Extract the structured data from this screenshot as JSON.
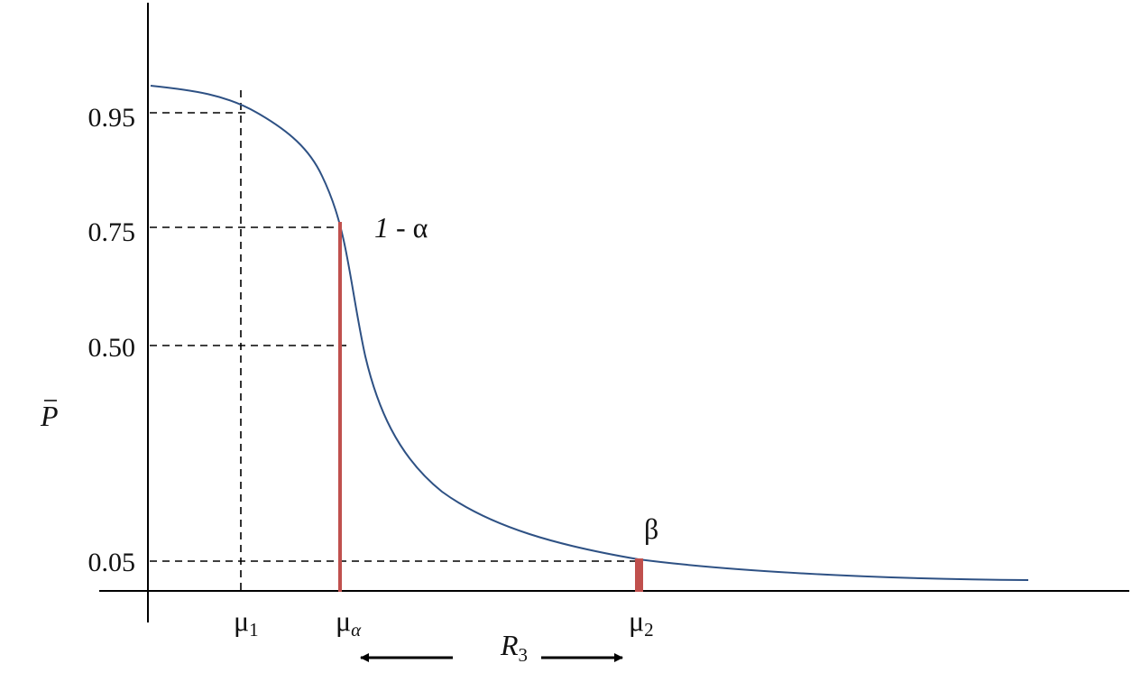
{
  "colors": {
    "curve": "#2e5184",
    "marker": "#c0504d",
    "axis": "#000000",
    "guide": "#000000"
  },
  "axes": {
    "y_label": "P",
    "y_ticks": [
      "0.95",
      "0.75",
      "0.50",
      "0.05"
    ],
    "x_ticks": [
      {
        "base": "μ",
        "sub": "1"
      },
      {
        "base": "μ",
        "sub": "α"
      },
      {
        "base": "μ",
        "sub": "2"
      }
    ]
  },
  "annotations": {
    "one_minus_alpha": {
      "one": "1",
      "rest": " - α"
    },
    "beta": "β",
    "range": {
      "base": "R",
      "sub": "3"
    }
  }
}
